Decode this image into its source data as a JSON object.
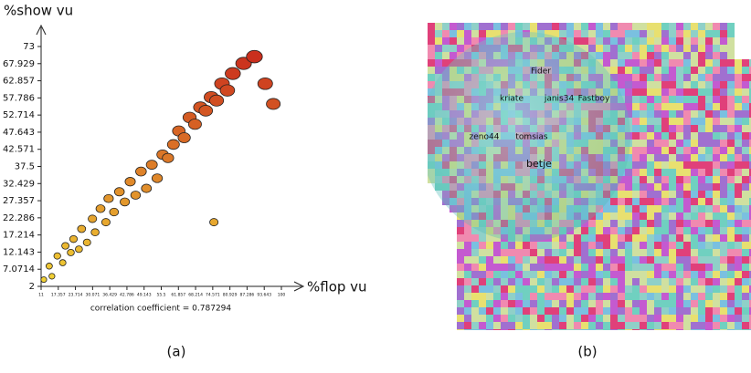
{
  "chart_data": {
    "type": "scatter",
    "x_label": "%flop vu",
    "y_label": "%show vu",
    "note": "correlation coefficient = 0.787294",
    "panel_label": "(a)",
    "x": [
      12,
      14,
      15,
      17,
      19,
      20,
      22,
      23,
      25,
      26,
      28,
      30,
      31,
      33,
      35,
      36,
      38,
      40,
      42,
      44,
      46,
      48,
      50,
      52,
      54,
      56,
      58,
      60,
      62,
      64,
      66,
      68,
      70,
      72,
      74,
      76,
      78,
      80,
      82,
      86,
      90,
      94,
      97,
      75
    ],
    "y": [
      4,
      8,
      5,
      11,
      9,
      14,
      12,
      16,
      13,
      19,
      15,
      22,
      18,
      25,
      21,
      28,
      24,
      30,
      27,
      33,
      29,
      36,
      31,
      38,
      34,
      41,
      40,
      44,
      48,
      46,
      52,
      50,
      55,
      54,
      58,
      57,
      62,
      60,
      65,
      68,
      70,
      62,
      56,
      21
    ],
    "color_scale": [
      "#f2d535",
      "#c8281c"
    ],
    "xlim": [
      11,
      100
    ],
    "ylim": [
      2,
      73
    ],
    "xticks": [
      11,
      17.357,
      23.714,
      30.071,
      36.429,
      42.786,
      49.143,
      55.5,
      61.857,
      68.214,
      74.571,
      80.929,
      87.286,
      93.643,
      100
    ],
    "yticks": [
      2,
      7.0714,
      12.143,
      17.214,
      22.286,
      27.357,
      32.429,
      37.5,
      42.571,
      47.643,
      52.714,
      57.786,
      62.857,
      67.929,
      73
    ]
  },
  "panel_b": {
    "panel_label": "(b)",
    "words": [
      "Fider",
      "kriate",
      "janis34",
      "Fastboy",
      "zeno44",
      "tomsias",
      "betje"
    ]
  }
}
